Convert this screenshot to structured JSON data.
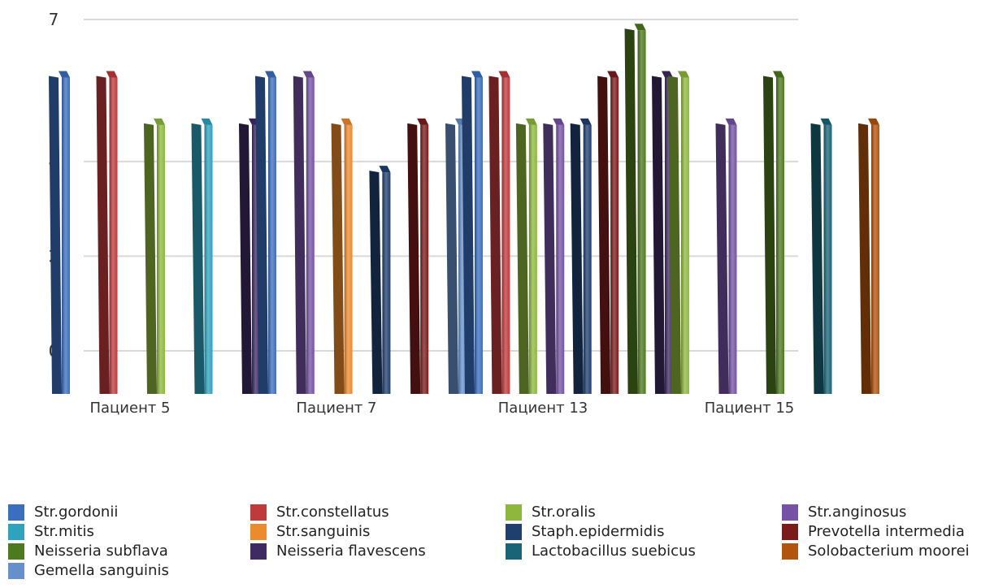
{
  "chart_data": {
    "type": "bar",
    "title": "",
    "xlabel": "",
    "ylabel": "",
    "ylim": [
      0,
      7
    ],
    "y_tick_labels": [
      "0",
      "2",
      "4",
      "7"
    ],
    "grid": true,
    "legend_position": "bottom",
    "categories": [
      "Пациент 5",
      "Пациент 7",
      "Пациент 13",
      "Пациент 15"
    ],
    "series": [
      {
        "name": "Str.gordonii",
        "color": "#3A6FC0",
        "values": [
          6,
          6,
          6,
          0
        ]
      },
      {
        "name": "Str.constellatus",
        "color": "#C0393B",
        "values": [
          6,
          0,
          6,
          0
        ]
      },
      {
        "name": "Str.oralis",
        "color": "#8DB83D",
        "values": [
          5,
          0,
          5,
          6
        ]
      },
      {
        "name": "Str.anginosus",
        "color": "#7552A5",
        "values": [
          0,
          6,
          5,
          5
        ]
      },
      {
        "name": "Str.mitis",
        "color": "#2FA2BD",
        "values": [
          5,
          0,
          0,
          0
        ]
      },
      {
        "name": "Str.sanguinis",
        "color": "#EC8A2E",
        "values": [
          0,
          5,
          0,
          0
        ]
      },
      {
        "name": "Staph.epidermidis",
        "color": "#1F3F6E",
        "values": [
          0,
          4,
          5,
          0
        ]
      },
      {
        "name": "Prevotella intermedia",
        "color": "#7A1C1C",
        "values": [
          0,
          5,
          6,
          0
        ]
      },
      {
        "name": "Neisseria subflava",
        "color": "#4D7A1F",
        "values": [
          0,
          0,
          7,
          6
        ]
      },
      {
        "name": "Neisseria flavescens",
        "color": "#3F2A63",
        "values": [
          5,
          0,
          6,
          0
        ]
      },
      {
        "name": "Lactobacillus suebicus",
        "color": "#1A6478",
        "values": [
          0,
          0,
          0,
          5
        ]
      },
      {
        "name": "Solobacterium moorei",
        "color": "#B3540E",
        "values": [
          0,
          0,
          0,
          5
        ]
      },
      {
        "name": "Gemella sanguinis",
        "color": "#6690CC",
        "values": [
          0,
          5,
          0,
          0
        ]
      }
    ]
  }
}
